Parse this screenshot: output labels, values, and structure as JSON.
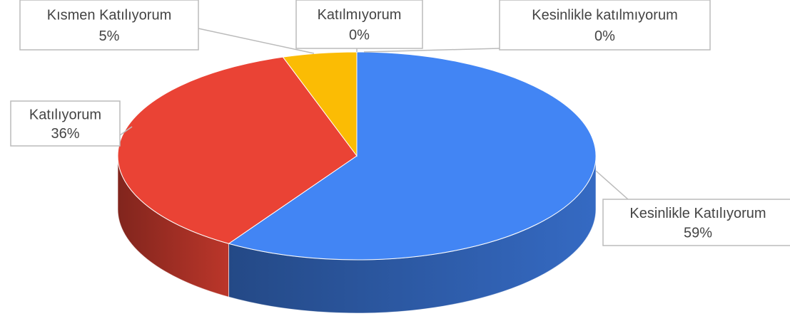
{
  "chart_data": {
    "type": "pie",
    "categories": [
      "Kesinlikle Katılıyorum",
      "Katılıyorum",
      "Kısmen Katılıyorum",
      "Katılmıyorum",
      "Kesinlikle katılmıyorum"
    ],
    "values": [
      59,
      36,
      5,
      0,
      0
    ],
    "value_labels": [
      "59%",
      "36%",
      "5%",
      "0%",
      "0%"
    ],
    "colors": [
      "#4285f4",
      "#ea4335",
      "#fbbc04",
      "#34a853",
      "#ff6d01"
    ]
  }
}
